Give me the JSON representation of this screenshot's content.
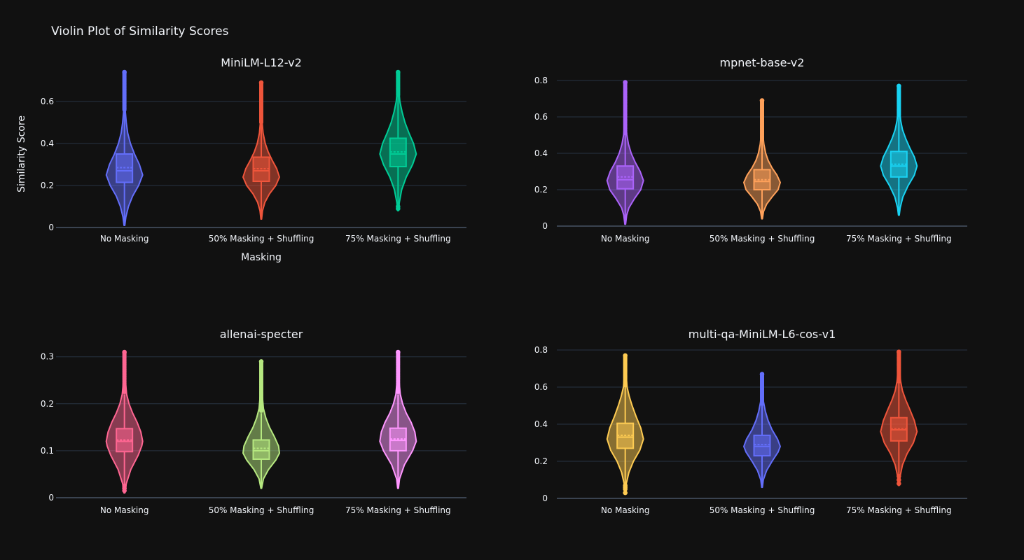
{
  "figure": {
    "title": "Violin Plot of Similarity Scores",
    "background": "#111111",
    "grid_color": "#283442"
  },
  "chart_data": [
    {
      "type": "violin",
      "title": "MiniLM-L12-v2",
      "xlabel": "Masking",
      "ylabel": "Similarity Score",
      "categories": [
        "No Masking",
        "50% Masking + Shuffling",
        "75% Masking + Shuffling"
      ],
      "ylim": [
        0,
        0.7
      ],
      "yticks": [
        0,
        0.2,
        0.4,
        0.6
      ],
      "ytick_labels": [
        "0",
        "0.2",
        "0.4",
        "0.6"
      ],
      "series": [
        {
          "color": "#636efa",
          "min": 0.01,
          "q1": 0.215,
          "median": 0.27,
          "mean": 0.285,
          "q3": 0.35,
          "upper_fence": 0.55,
          "max": 0.74,
          "outlier_start": 0.56,
          "density": [
            [
              0.01,
              0.02
            ],
            [
              0.05,
              0.08
            ],
            [
              0.1,
              0.22
            ],
            [
              0.15,
              0.45
            ],
            [
              0.2,
              0.78
            ],
            [
              0.25,
              1.0
            ],
            [
              0.3,
              0.82
            ],
            [
              0.35,
              0.55
            ],
            [
              0.4,
              0.33
            ],
            [
              0.45,
              0.18
            ],
            [
              0.5,
              0.1
            ],
            [
              0.55,
              0.05
            ],
            [
              0.6,
              0.03
            ],
            [
              0.7,
              0.02
            ],
            [
              0.74,
              0.01
            ]
          ]
        },
        {
          "color": "#ef553b",
          "min": 0.04,
          "q1": 0.22,
          "median": 0.27,
          "mean": 0.28,
          "q3": 0.335,
          "upper_fence": 0.49,
          "max": 0.69,
          "outlier_start": 0.5,
          "density": [
            [
              0.04,
              0.02
            ],
            [
              0.08,
              0.07
            ],
            [
              0.12,
              0.2
            ],
            [
              0.16,
              0.45
            ],
            [
              0.2,
              0.8
            ],
            [
              0.24,
              1.0
            ],
            [
              0.28,
              0.85
            ],
            [
              0.32,
              0.6
            ],
            [
              0.36,
              0.38
            ],
            [
              0.4,
              0.22
            ],
            [
              0.45,
              0.1
            ],
            [
              0.5,
              0.05
            ],
            [
              0.6,
              0.03
            ],
            [
              0.69,
              0.01
            ]
          ]
        },
        {
          "color": "#00cc96",
          "min": 0.08,
          "q1": 0.29,
          "median": 0.35,
          "mean": 0.36,
          "q3": 0.425,
          "upper_fence": 0.62,
          "max": 0.74,
          "outlier_start": 0.63,
          "low_outliers": [
            0.09,
            0.1
          ],
          "density": [
            [
              0.08,
              0.02
            ],
            [
              0.12,
              0.07
            ],
            [
              0.18,
              0.2
            ],
            [
              0.24,
              0.45
            ],
            [
              0.3,
              0.8
            ],
            [
              0.35,
              1.0
            ],
            [
              0.4,
              0.85
            ],
            [
              0.45,
              0.6
            ],
            [
              0.5,
              0.38
            ],
            [
              0.55,
              0.22
            ],
            [
              0.6,
              0.1
            ],
            [
              0.65,
              0.05
            ],
            [
              0.7,
              0.02
            ],
            [
              0.74,
              0.01
            ]
          ]
        }
      ]
    },
    {
      "type": "violin",
      "title": "mpnet-base-v2",
      "categories": [
        "No Masking",
        "50% Masking + Shuffling",
        "75% Masking + Shuffling"
      ],
      "ylim": [
        0,
        0.8
      ],
      "yticks": [
        0,
        0.2,
        0.4,
        0.6,
        0.8
      ],
      "ytick_labels": [
        "0",
        "0.2",
        "0.4",
        "0.6",
        "0.8"
      ],
      "series": [
        {
          "color": "#ab63fa",
          "min": 0.01,
          "q1": 0.205,
          "median": 0.255,
          "mean": 0.27,
          "q3": 0.33,
          "upper_fence": 0.5,
          "max": 0.79,
          "outlier_start": 0.51,
          "density": [
            [
              0.01,
              0.02
            ],
            [
              0.06,
              0.08
            ],
            [
              0.1,
              0.2
            ],
            [
              0.15,
              0.5
            ],
            [
              0.2,
              0.85
            ],
            [
              0.25,
              1.0
            ],
            [
              0.3,
              0.82
            ],
            [
              0.35,
              0.55
            ],
            [
              0.4,
              0.33
            ],
            [
              0.45,
              0.18
            ],
            [
              0.5,
              0.09
            ],
            [
              0.55,
              0.04
            ],
            [
              0.65,
              0.02
            ],
            [
              0.79,
              0.01
            ]
          ]
        },
        {
          "color": "#ffa15a",
          "min": 0.04,
          "q1": 0.2,
          "median": 0.245,
          "mean": 0.255,
          "q3": 0.31,
          "upper_fence": 0.47,
          "max": 0.69,
          "outlier_start": 0.48,
          "density": [
            [
              0.04,
              0.02
            ],
            [
              0.08,
              0.08
            ],
            [
              0.12,
              0.25
            ],
            [
              0.16,
              0.55
            ],
            [
              0.2,
              0.88
            ],
            [
              0.24,
              1.0
            ],
            [
              0.28,
              0.82
            ],
            [
              0.32,
              0.55
            ],
            [
              0.36,
              0.34
            ],
            [
              0.4,
              0.2
            ],
            [
              0.45,
              0.1
            ],
            [
              0.5,
              0.05
            ],
            [
              0.6,
              0.02
            ],
            [
              0.69,
              0.01
            ]
          ]
        },
        {
          "color": "#19d3f3",
          "min": 0.06,
          "q1": 0.27,
          "median": 0.33,
          "mean": 0.34,
          "q3": 0.41,
          "upper_fence": 0.6,
          "max": 0.77,
          "outlier_start": 0.61,
          "density": [
            [
              0.06,
              0.02
            ],
            [
              0.1,
              0.07
            ],
            [
              0.16,
              0.22
            ],
            [
              0.22,
              0.5
            ],
            [
              0.28,
              0.85
            ],
            [
              0.33,
              1.0
            ],
            [
              0.38,
              0.85
            ],
            [
              0.43,
              0.6
            ],
            [
              0.48,
              0.38
            ],
            [
              0.53,
              0.2
            ],
            [
              0.58,
              0.1
            ],
            [
              0.63,
              0.05
            ],
            [
              0.7,
              0.02
            ],
            [
              0.77,
              0.01
            ]
          ]
        }
      ]
    },
    {
      "type": "violin",
      "title": "allenai-specter",
      "categories": [
        "No Masking",
        "50% Masking + Shuffling",
        "75% Masking + Shuffling"
      ],
      "ylim": [
        0,
        0.31
      ],
      "yticks": [
        0,
        0.1,
        0.2,
        0.3
      ],
      "ytick_labels": [
        "0",
        "0.1",
        "0.2",
        "0.3"
      ],
      "series": [
        {
          "color": "#ff6692",
          "min": 0.01,
          "q1": 0.098,
          "median": 0.12,
          "mean": 0.123,
          "q3": 0.147,
          "upper_fence": 0.22,
          "max": 0.31,
          "outlier_start": 0.225,
          "low_outliers": [
            0.015,
            0.02,
            0.025
          ],
          "density": [
            [
              0.01,
              0.02
            ],
            [
              0.03,
              0.1
            ],
            [
              0.06,
              0.35
            ],
            [
              0.09,
              0.75
            ],
            [
              0.11,
              0.95
            ],
            [
              0.12,
              1.0
            ],
            [
              0.14,
              0.9
            ],
            [
              0.16,
              0.7
            ],
            [
              0.18,
              0.45
            ],
            [
              0.2,
              0.25
            ],
            [
              0.22,
              0.12
            ],
            [
              0.25,
              0.05
            ],
            [
              0.28,
              0.02
            ],
            [
              0.31,
              0.01
            ]
          ]
        },
        {
          "color": "#b6e880",
          "min": 0.02,
          "q1": 0.082,
          "median": 0.1,
          "mean": 0.105,
          "q3": 0.123,
          "upper_fence": 0.18,
          "max": 0.29,
          "outlier_start": 0.185,
          "density": [
            [
              0.02,
              0.02
            ],
            [
              0.04,
              0.12
            ],
            [
              0.06,
              0.4
            ],
            [
              0.08,
              0.8
            ],
            [
              0.095,
              1.0
            ],
            [
              0.11,
              0.95
            ],
            [
              0.13,
              0.72
            ],
            [
              0.15,
              0.45
            ],
            [
              0.17,
              0.25
            ],
            [
              0.19,
              0.12
            ],
            [
              0.22,
              0.05
            ],
            [
              0.25,
              0.02
            ],
            [
              0.29,
              0.01
            ]
          ]
        },
        {
          "color": "#ff97ff",
          "min": 0.02,
          "q1": 0.1,
          "median": 0.122,
          "mean": 0.125,
          "q3": 0.148,
          "upper_fence": 0.22,
          "max": 0.31,
          "outlier_start": 0.225,
          "density": [
            [
              0.02,
              0.02
            ],
            [
              0.04,
              0.08
            ],
            [
              0.07,
              0.35
            ],
            [
              0.1,
              0.8
            ],
            [
              0.12,
              1.0
            ],
            [
              0.14,
              0.92
            ],
            [
              0.16,
              0.72
            ],
            [
              0.18,
              0.45
            ],
            [
              0.2,
              0.25
            ],
            [
              0.22,
              0.12
            ],
            [
              0.25,
              0.05
            ],
            [
              0.28,
              0.02
            ],
            [
              0.31,
              0.01
            ]
          ]
        }
      ]
    },
    {
      "type": "violin",
      "title": "multi-qa-MiniLM-L6-cos-v1",
      "categories": [
        "No Masking",
        "50% Masking + Shuffling",
        "75% Masking + Shuffling"
      ],
      "ylim": [
        0,
        0.8
      ],
      "yticks": [
        0,
        0.2,
        0.4,
        0.6,
        0.8
      ],
      "ytick_labels": [
        "0",
        "0.2",
        "0.4",
        "0.6",
        "0.8"
      ],
      "series": [
        {
          "color": "#fecb52",
          "min": 0.03,
          "q1": 0.27,
          "median": 0.33,
          "mean": 0.34,
          "q3": 0.405,
          "upper_fence": 0.6,
          "max": 0.77,
          "outlier_start": 0.61,
          "low_outliers": [
            0.03,
            0.05,
            0.06,
            0.07
          ],
          "density": [
            [
              0.03,
              0.02
            ],
            [
              0.08,
              0.06
            ],
            [
              0.14,
              0.2
            ],
            [
              0.2,
              0.45
            ],
            [
              0.26,
              0.8
            ],
            [
              0.32,
              1.0
            ],
            [
              0.38,
              0.85
            ],
            [
              0.44,
              0.6
            ],
            [
              0.5,
              0.38
            ],
            [
              0.55,
              0.22
            ],
            [
              0.6,
              0.1
            ],
            [
              0.66,
              0.05
            ],
            [
              0.72,
              0.02
            ],
            [
              0.77,
              0.01
            ]
          ]
        },
        {
          "color": "#636efa",
          "min": 0.06,
          "q1": 0.23,
          "median": 0.28,
          "mean": 0.29,
          "q3": 0.34,
          "upper_fence": 0.5,
          "max": 0.67,
          "outlier_start": 0.51,
          "density": [
            [
              0.06,
              0.02
            ],
            [
              0.1,
              0.07
            ],
            [
              0.15,
              0.25
            ],
            [
              0.2,
              0.55
            ],
            [
              0.25,
              0.88
            ],
            [
              0.28,
              1.0
            ],
            [
              0.32,
              0.85
            ],
            [
              0.37,
              0.55
            ],
            [
              0.42,
              0.33
            ],
            [
              0.47,
              0.18
            ],
            [
              0.52,
              0.08
            ],
            [
              0.58,
              0.04
            ],
            [
              0.67,
              0.01
            ]
          ]
        },
        {
          "color": "#ef553b",
          "min": 0.07,
          "q1": 0.31,
          "median": 0.37,
          "mean": 0.375,
          "q3": 0.435,
          "upper_fence": 0.62,
          "max": 0.79,
          "outlier_start": 0.63,
          "low_outliers": [
            0.08,
            0.1,
            0.12
          ],
          "density": [
            [
              0.07,
              0.02
            ],
            [
              0.12,
              0.07
            ],
            [
              0.18,
              0.2
            ],
            [
              0.24,
              0.45
            ],
            [
              0.3,
              0.8
            ],
            [
              0.36,
              1.0
            ],
            [
              0.42,
              0.85
            ],
            [
              0.48,
              0.6
            ],
            [
              0.53,
              0.38
            ],
            [
              0.58,
              0.2
            ],
            [
              0.63,
              0.1
            ],
            [
              0.68,
              0.05
            ],
            [
              0.74,
              0.02
            ],
            [
              0.79,
              0.01
            ]
          ]
        }
      ]
    }
  ]
}
